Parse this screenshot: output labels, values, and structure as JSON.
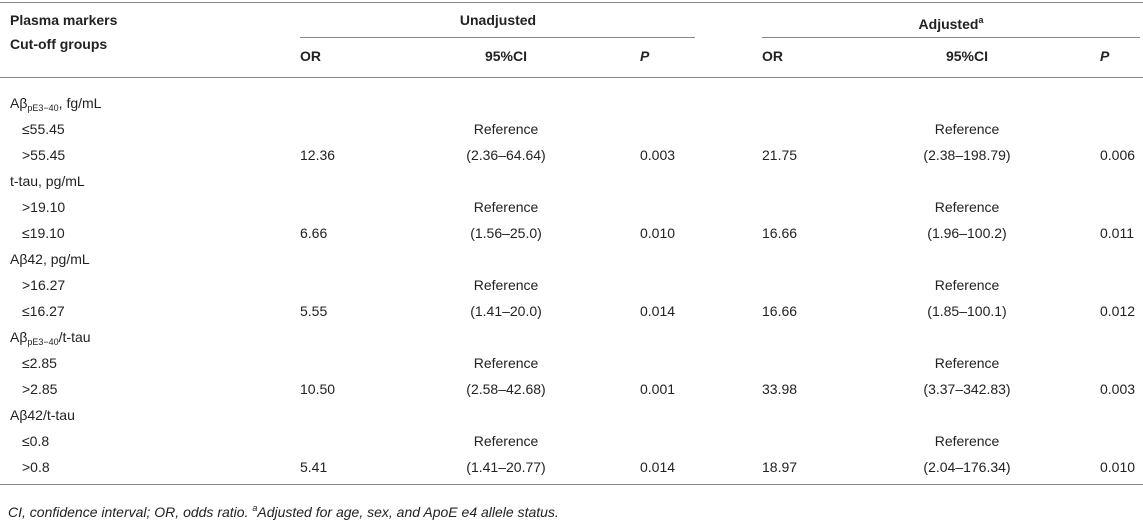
{
  "header": {
    "stub_1": "Plasma markers",
    "stub_2": "Cut-off groups",
    "groups": [
      {
        "title": "Unadjusted"
      },
      {
        "title": "Adjusted",
        "sup": "a"
      }
    ],
    "columns": [
      "OR",
      "95%CI",
      "P",
      "OR",
      "95%CI",
      "P"
    ]
  },
  "rows": [
    {
      "marker": "Aβ",
      "marker_sub": "pE3−40",
      "marker_rest": ", fg/mL"
    },
    {
      "group": "≤55.45",
      "unadjusted": {
        "ci": "Reference"
      },
      "adjusted": {
        "ci": "Reference"
      }
    },
    {
      "group": ">55.45",
      "unadjusted": {
        "or": "12.36",
        "ci": "(2.36–64.64)",
        "p": "0.003"
      },
      "adjusted": {
        "or": "21.75",
        "ci": "(2.38–198.79)",
        "p": "0.006"
      }
    },
    {
      "marker": "t-tau, pg/mL"
    },
    {
      "group": ">19.10",
      "unadjusted": {
        "ci": "Reference"
      },
      "adjusted": {
        "ci": "Reference"
      }
    },
    {
      "group": "≤19.10",
      "unadjusted": {
        "or": "6.66",
        "ci": "(1.56–25.0)",
        "p": "0.010"
      },
      "adjusted": {
        "or": "16.66",
        "ci": "(1.96–100.2)",
        "p": "0.011"
      }
    },
    {
      "marker": "Aβ42, pg/mL"
    },
    {
      "group": ">16.27",
      "unadjusted": {
        "ci": "Reference"
      },
      "adjusted": {
        "ci": "Reference"
      }
    },
    {
      "group": "≤16.27",
      "unadjusted": {
        "or": "5.55",
        "ci": "(1.41–20.0)",
        "p": "0.014"
      },
      "adjusted": {
        "or": "16.66",
        "ci": "(1.85–100.1)",
        "p": "0.012"
      }
    },
    {
      "marker": "Aβ",
      "marker_sub": "pE3−40",
      "marker_rest": "/t-tau"
    },
    {
      "group": "≤2.85",
      "unadjusted": {
        "ci": "Reference"
      },
      "adjusted": {
        "ci": "Reference"
      }
    },
    {
      "group": ">2.85",
      "unadjusted": {
        "or": "10.50",
        "ci": "(2.58–42.68)",
        "p": "0.001"
      },
      "adjusted": {
        "or": "33.98",
        "ci": "(3.37–342.83)",
        "p": "0.003"
      }
    },
    {
      "marker": "Aβ42/t-tau"
    },
    {
      "group": "≤0.8",
      "unadjusted": {
        "ci": "Reference"
      },
      "adjusted": {
        "ci": "Reference"
      }
    },
    {
      "group": ">0.8",
      "unadjusted": {
        "or": "5.41",
        "ci": "(1.41–20.77)",
        "p": "0.014"
      },
      "adjusted": {
        "or": "18.97",
        "ci": "(2.04–176.34)",
        "p": "0.010"
      }
    }
  ],
  "footnote": {
    "text": "CI, confidence interval; OR, odds ratio. ",
    "sup": "a",
    "rest": "Adjusted for age, sex, and ApoE e4 allele status."
  }
}
